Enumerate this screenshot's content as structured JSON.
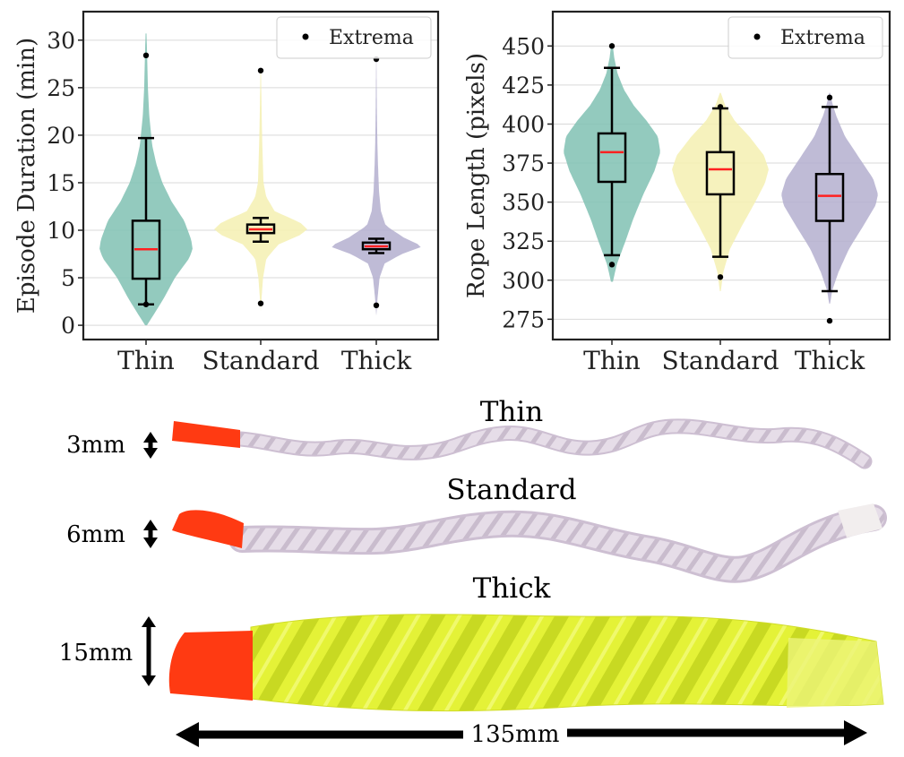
{
  "chart_data": [
    {
      "type": "violin",
      "ylabel": "Episode Duration (min)",
      "ylim": [
        -1.5,
        33
      ],
      "yticks": [
        0,
        5,
        10,
        15,
        20,
        25,
        30
      ],
      "categories": [
        "Thin",
        "Standard",
        "Thick"
      ],
      "grid": "horizontal",
      "legend": {
        "label": "Extrema",
        "placement": "top-right"
      },
      "series": [
        {
          "category": "Thin",
          "color": "#80c1b3",
          "whisker_low": 2.2,
          "q1": 4.9,
          "median": 8.0,
          "q3": 11.0,
          "whisker_high": 19.7,
          "min": 2.2,
          "max": 28.4,
          "kde": [
            [
              0,
              0.02
            ],
            [
              1,
              0.15
            ],
            [
              3,
              0.4
            ],
            [
              5,
              0.62
            ],
            [
              7,
              0.92
            ],
            [
              8,
              1.0
            ],
            [
              9,
              0.97
            ],
            [
              11,
              0.82
            ],
            [
              13,
              0.55
            ],
            [
              15,
              0.35
            ],
            [
              17,
              0.22
            ],
            [
              19,
              0.13
            ],
            [
              22,
              0.07
            ],
            [
              25,
              0.04
            ],
            [
              28,
              0.025
            ],
            [
              30.7,
              0.01
            ]
          ]
        },
        {
          "category": "Standard",
          "color": "#f5f0b2",
          "whisker_low": 8.8,
          "q1": 9.7,
          "median": 10.1,
          "q3": 10.6,
          "whisker_high": 11.3,
          "min": 2.3,
          "max": 26.8,
          "kde": [
            [
              1.5,
              0.0
            ],
            [
              3,
              0.02
            ],
            [
              5,
              0.05
            ],
            [
              7,
              0.12
            ],
            [
              8.5,
              0.38
            ],
            [
              9.5,
              0.85
            ],
            [
              10.1,
              1.0
            ],
            [
              10.8,
              0.85
            ],
            [
              12,
              0.3
            ],
            [
              13.5,
              0.12
            ],
            [
              15,
              0.06
            ],
            [
              18,
              0.04
            ],
            [
              21,
              0.025
            ],
            [
              24,
              0.015
            ],
            [
              27,
              0.005
            ]
          ]
        },
        {
          "category": "Thick",
          "color": "#b4afcf",
          "whisker_low": 7.6,
          "q1": 8.0,
          "median": 8.3,
          "q3": 8.7,
          "whisker_high": 9.1,
          "min": 2.1,
          "max": 28.0,
          "kde": [
            [
              1.0,
              0.0
            ],
            [
              3,
              0.03
            ],
            [
              5,
              0.07
            ],
            [
              6.5,
              0.18
            ],
            [
              7.5,
              0.55
            ],
            [
              8.3,
              1.0
            ],
            [
              9.2,
              0.6
            ],
            [
              10.5,
              0.2
            ],
            [
              12,
              0.1
            ],
            [
              14,
              0.06
            ],
            [
              17,
              0.035
            ],
            [
              20,
              0.02
            ],
            [
              24,
              0.01
            ],
            [
              28.5,
              0.002
            ]
          ]
        }
      ]
    },
    {
      "type": "violin",
      "ylabel": "Rope Length (pixels)",
      "ylim": [
        262,
        472
      ],
      "yticks": [
        275,
        300,
        325,
        350,
        375,
        400,
        425,
        450
      ],
      "categories": [
        "Thin",
        "Standard",
        "Thick"
      ],
      "grid": "horizontal",
      "legend": {
        "label": "Extrema",
        "placement": "top-right"
      },
      "series": [
        {
          "category": "Thin",
          "color": "#80c1b3",
          "whisker_low": 316,
          "q1": 363,
          "median": 382,
          "q3": 394,
          "whisker_high": 436,
          "min": 310,
          "max": 450,
          "kde": [
            [
              299,
              0.02
            ],
            [
              310,
              0.1
            ],
            [
              325,
              0.28
            ],
            [
              340,
              0.45
            ],
            [
              355,
              0.65
            ],
            [
              370,
              0.88
            ],
            [
              382,
              1.0
            ],
            [
              392,
              0.95
            ],
            [
              402,
              0.72
            ],
            [
              412,
              0.45
            ],
            [
              422,
              0.25
            ],
            [
              432,
              0.12
            ],
            [
              442,
              0.05
            ],
            [
              452,
              0.01
            ]
          ]
        },
        {
          "category": "Standard",
          "color": "#f5f0b2",
          "whisker_low": 315,
          "q1": 355,
          "median": 371,
          "q3": 382,
          "whisker_high": 410,
          "min": 302,
          "max": 411,
          "kde": [
            [
              293,
              0.01
            ],
            [
              305,
              0.06
            ],
            [
              320,
              0.2
            ],
            [
              335,
              0.45
            ],
            [
              350,
              0.72
            ],
            [
              362,
              0.92
            ],
            [
              371,
              1.0
            ],
            [
              380,
              0.9
            ],
            [
              392,
              0.6
            ],
            [
              402,
              0.3
            ],
            [
              412,
              0.1
            ],
            [
              420,
              0.01
            ]
          ]
        },
        {
          "category": "Thick",
          "color": "#b4afcf",
          "whisker_low": 293,
          "q1": 338,
          "median": 354,
          "q3": 368,
          "whisker_high": 411,
          "min": 274,
          "max": 417,
          "kde": [
            [
              285,
              0.01
            ],
            [
              293,
              0.05
            ],
            [
              305,
              0.18
            ],
            [
              320,
              0.4
            ],
            [
              335,
              0.7
            ],
            [
              348,
              0.95
            ],
            [
              355,
              1.0
            ],
            [
              365,
              0.9
            ],
            [
              378,
              0.62
            ],
            [
              392,
              0.32
            ],
            [
              405,
              0.14
            ],
            [
              414,
              0.05
            ],
            [
              420,
              0.01
            ]
          ]
        }
      ]
    }
  ],
  "ropes": {
    "rows": [
      {
        "title": "Thin",
        "label": "3mm"
      },
      {
        "title": "Standard",
        "label": "6mm"
      },
      {
        "title": "Thick",
        "label": "15mm"
      }
    ],
    "length_label": "135mm"
  }
}
